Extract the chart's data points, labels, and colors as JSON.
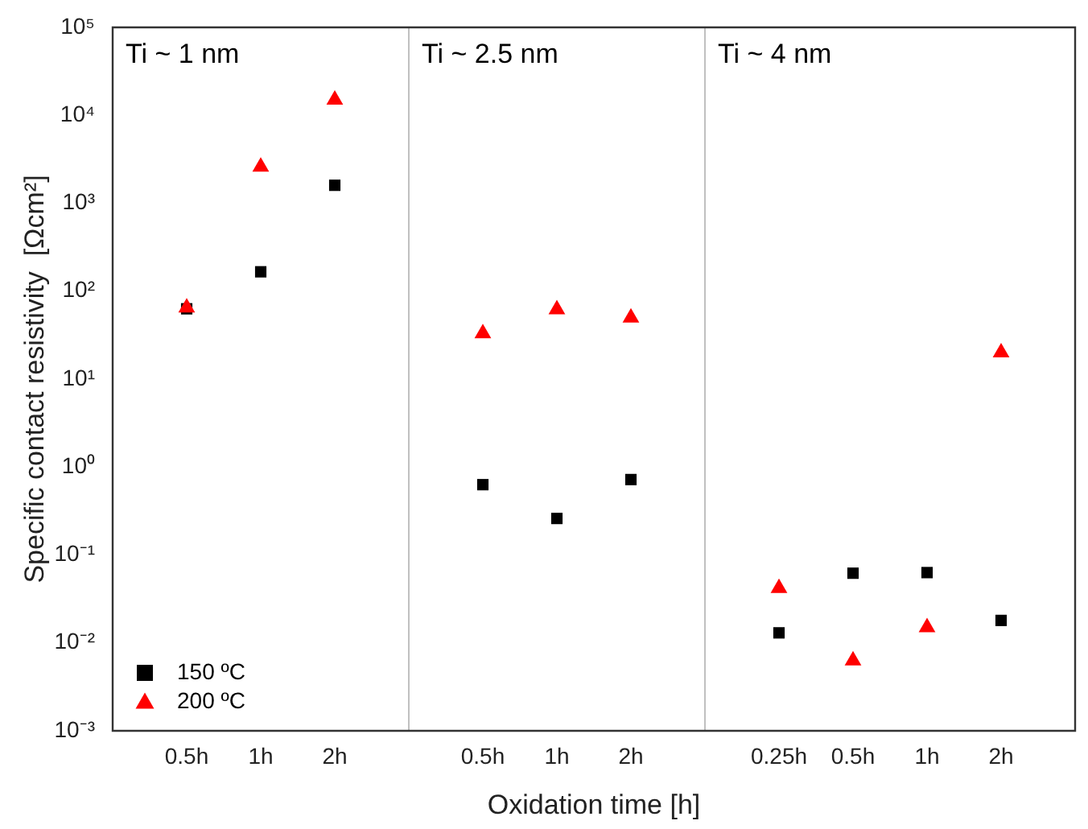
{
  "chart_data": {
    "type": "scatter",
    "xlabel": "Oxidation time [h]",
    "ylabel": "Specific contact resistivity  [Ωcm²]",
    "categories": [
      null,
      "0.5h",
      "1h",
      "2h",
      null,
      "0.5h",
      "1h",
      "2h",
      null,
      "0.25h",
      "0.5h",
      "1h",
      "2h",
      null
    ],
    "series": [
      {
        "name": "150 ºC",
        "color": "#000000",
        "marker": "square",
        "values": [
          null,
          63,
          166,
          1600,
          null,
          0.63,
          0.26,
          0.72,
          null,
          0.013,
          0.062,
          0.063,
          0.018,
          null
        ]
      },
      {
        "name": "200 ºC",
        "color": "#ff0000",
        "marker": "triangle",
        "values": [
          null,
          65,
          2600,
          15000,
          null,
          33,
          62,
          50,
          null,
          0.042,
          0.0063,
          0.015,
          20,
          null
        ]
      }
    ],
    "log": "y",
    "ylim": [
      0.001,
      100000
    ],
    "yticks": [
      {
        "value": 0.001,
        "label": "10⁻³"
      },
      {
        "value": 0.01,
        "label": "10⁻²"
      },
      {
        "value": 0.1,
        "label": "10⁻¹"
      },
      {
        "value": 1,
        "label": "10⁰"
      },
      {
        "value": 10,
        "label": "10¹"
      },
      {
        "value": 100,
        "label": "10²"
      },
      {
        "value": 1000,
        "label": "10³"
      },
      {
        "value": 10000,
        "label": "10⁴"
      },
      {
        "value": 100000,
        "label": "10⁵"
      }
    ],
    "annotations": [
      "Ti ~ 1 nm",
      "Ti ~ 2.5 nm",
      "Ti ~ 4 nm"
    ],
    "grid": "x",
    "legend": "bottom left"
  }
}
